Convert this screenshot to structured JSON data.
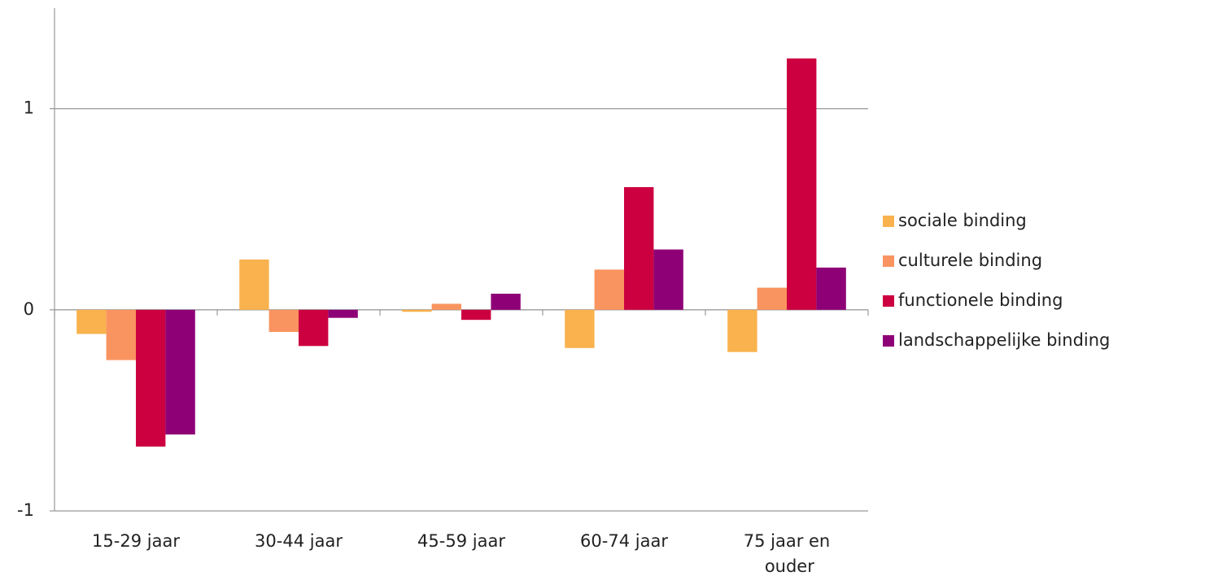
{
  "chart_data": {
    "type": "bar",
    "categories": [
      "15-29 jaar",
      "30-44 jaar",
      "45-59 jaar",
      "60-74 jaar",
      "75 jaar en ouder"
    ],
    "series": [
      {
        "name": "sociale binding",
        "color": "#f9b24d",
        "values": [
          -0.12,
          0.25,
          -0.01,
          -0.19,
          -0.21
        ]
      },
      {
        "name": "culturele binding",
        "color": "#f99460",
        "values": [
          -0.25,
          -0.11,
          0.03,
          0.2,
          0.11
        ]
      },
      {
        "name": "functionele binding",
        "color": "#cc0040",
        "values": [
          -0.68,
          -0.18,
          -0.05,
          0.61,
          1.25
        ]
      },
      {
        "name": "landschappelijke binding",
        "color": "#8e0076",
        "values": [
          -0.62,
          -0.04,
          0.08,
          0.3,
          0.21
        ]
      }
    ],
    "ylim": [
      -1,
      1.5
    ],
    "yticks": [
      -1,
      0,
      1
    ],
    "grid": true,
    "legend": "right"
  }
}
